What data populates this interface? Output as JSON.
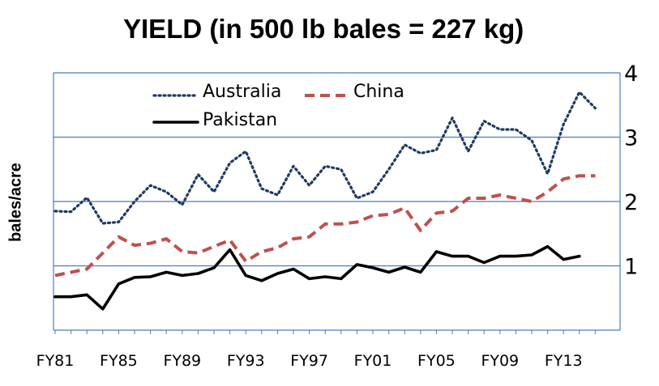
{
  "chart_data": {
    "type": "line",
    "title": "YIELD  (in 500 lb bales = 227 kg)",
    "xlabel": "",
    "ylabel": "bales/acre",
    "ylim": [
      0,
      4
    ],
    "yticks": [
      1,
      2,
      3,
      4
    ],
    "y_axis_side": "right",
    "grid": true,
    "legend_position": "top",
    "x_tick_labels": [
      "FY81",
      "FY85",
      "FY89",
      "FY93",
      "FY97",
      "FY01",
      "FY05",
      "FY09",
      "FY13"
    ],
    "x": [
      "FY81",
      "FY82",
      "FY83",
      "FY84",
      "FY85",
      "FY86",
      "FY87",
      "FY88",
      "FY89",
      "FY90",
      "FY91",
      "FY92",
      "FY93",
      "FY94",
      "FY95",
      "FY96",
      "FY97",
      "FY98",
      "FY99",
      "FY00",
      "FY01",
      "FY02",
      "FY03",
      "FY04",
      "FY05",
      "FY06",
      "FY07",
      "FY08",
      "FY09",
      "FY10",
      "FY11",
      "FY12",
      "FY13",
      "FY14",
      "FY15"
    ],
    "series": [
      {
        "name": "Australia",
        "style": "dotted",
        "color": "#1f3a63",
        "values": [
          1.85,
          1.84,
          2.06,
          1.66,
          1.68,
          2.0,
          2.25,
          2.15,
          1.95,
          2.42,
          2.15,
          2.6,
          2.78,
          2.2,
          2.1,
          2.55,
          2.25,
          2.55,
          2.5,
          2.05,
          2.15,
          2.5,
          2.88,
          2.75,
          2.8,
          3.3,
          2.78,
          3.25,
          3.12,
          3.12,
          2.95,
          2.43,
          3.2,
          3.7,
          3.45
        ]
      },
      {
        "name": "China",
        "style": "dashed",
        "color": "#c0504d",
        "values": [
          0.85,
          0.9,
          0.95,
          1.2,
          1.45,
          1.32,
          1.35,
          1.42,
          1.22,
          1.2,
          1.3,
          1.4,
          1.07,
          1.22,
          1.28,
          1.42,
          1.45,
          1.65,
          1.65,
          1.68,
          1.78,
          1.8,
          1.9,
          1.55,
          1.82,
          1.85,
          2.05,
          2.05,
          2.1,
          2.05,
          2.0,
          2.15,
          2.35,
          2.4,
          2.4
        ]
      },
      {
        "name": "Pakistan",
        "style": "solid",
        "color": "#000000",
        "values": [
          0.52,
          0.52,
          0.55,
          0.33,
          0.72,
          0.82,
          0.83,
          0.9,
          0.85,
          0.88,
          0.97,
          1.25,
          0.85,
          0.77,
          0.88,
          0.95,
          0.8,
          0.83,
          0.8,
          1.02,
          0.97,
          0.9,
          0.98,
          0.9,
          1.22,
          1.15,
          1.15,
          1.05,
          1.15,
          1.15,
          1.17,
          1.3,
          1.1,
          1.15,
          null
        ]
      }
    ]
  }
}
